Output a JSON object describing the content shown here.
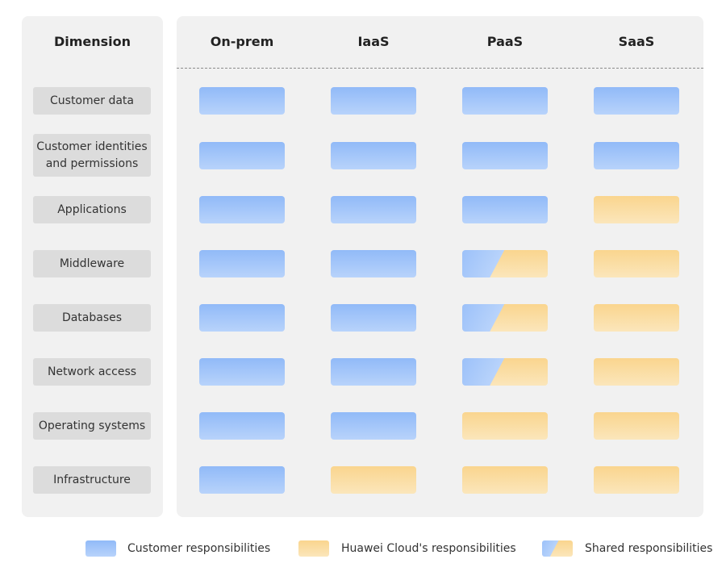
{
  "header": {
    "dimension": "Dimension",
    "columns": [
      "On-prem",
      "IaaS",
      "PaaS",
      "SaaS"
    ]
  },
  "colors": {
    "customer": "#9ec3f9",
    "huawei": "#fbd98f",
    "panel": "#f1f1f1",
    "dimension_box": "#dcdcdc"
  },
  "rows": [
    {
      "label": "Customer data",
      "cells": [
        "customer",
        "customer",
        "customer",
        "customer"
      ]
    },
    {
      "label": "Customer identities and permissions",
      "cells": [
        "customer",
        "customer",
        "customer",
        "customer"
      ]
    },
    {
      "label": "Applications",
      "cells": [
        "customer",
        "customer",
        "customer",
        "huawei"
      ]
    },
    {
      "label": "Middleware",
      "cells": [
        "customer",
        "customer",
        "shared",
        "huawei"
      ]
    },
    {
      "label": "Databases",
      "cells": [
        "customer",
        "customer",
        "shared",
        "huawei"
      ]
    },
    {
      "label": "Network access",
      "cells": [
        "customer",
        "customer",
        "shared",
        "huawei"
      ]
    },
    {
      "label": "Operating systems",
      "cells": [
        "customer",
        "customer",
        "huawei",
        "huawei"
      ]
    },
    {
      "label": "Infrastructure",
      "cells": [
        "customer",
        "huawei",
        "huawei",
        "huawei"
      ]
    }
  ],
  "legend": [
    {
      "kind": "customer",
      "label": "Customer responsibilities"
    },
    {
      "kind": "huawei",
      "label": "Huawei Cloud's responsibilities"
    },
    {
      "kind": "shared",
      "label": "Shared responsibilities"
    }
  ]
}
